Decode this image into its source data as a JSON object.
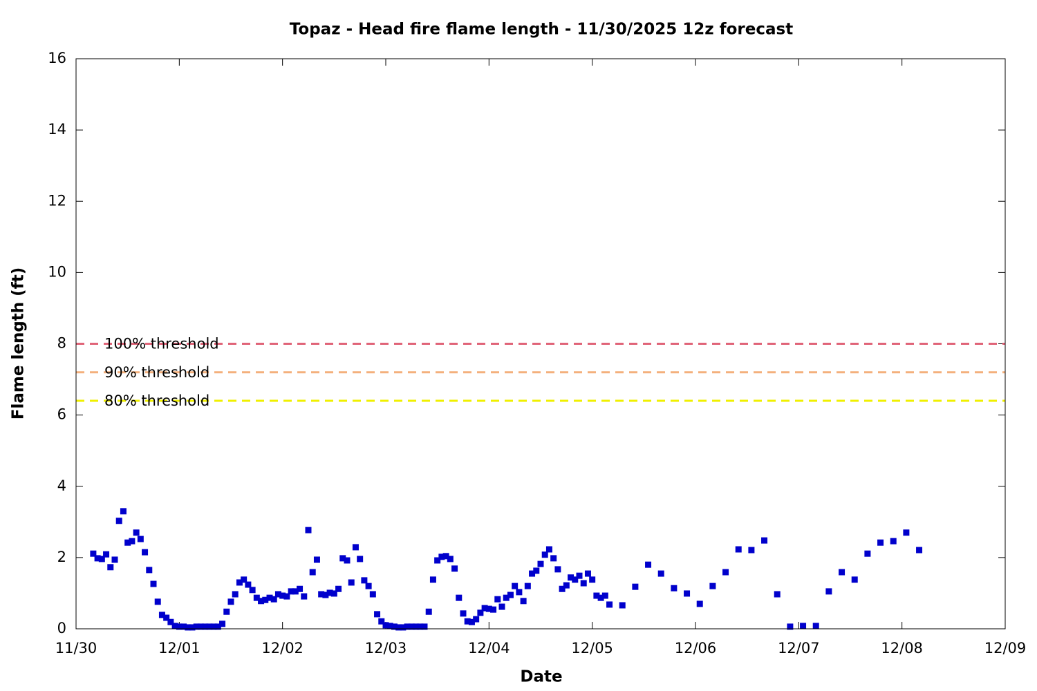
{
  "chart_data": {
    "type": "scatter",
    "title": "Topaz - Head fire flame length - 11/30/2025 12z forecast",
    "x_label": "Date",
    "y_label": "Flame length (ft)",
    "color": "#0000cc",
    "x": [
      4,
      5,
      6,
      7,
      8,
      9,
      10,
      11,
      12,
      13,
      14,
      15,
      16,
      17,
      18,
      19,
      20,
      21,
      22,
      23,
      24,
      25,
      26,
      27,
      28,
      29,
      30,
      31,
      32,
      33,
      34,
      35,
      36,
      37,
      38,
      39,
      40,
      41,
      42,
      43,
      44,
      45,
      46,
      47,
      48,
      49,
      50,
      51,
      52,
      53,
      54,
      55,
      56,
      57,
      58,
      59,
      60,
      61,
      62,
      63,
      64,
      65,
      66,
      67,
      68,
      69,
      70,
      71,
      72,
      73,
      74,
      75,
      76,
      77,
      78,
      79,
      80,
      81,
      82,
      83,
      84,
      85,
      86,
      87,
      88,
      89,
      90,
      91,
      92,
      93,
      94,
      95,
      96,
      97,
      98,
      99,
      100,
      101,
      102,
      103,
      104,
      105,
      106,
      107,
      108,
      109,
      110,
      111,
      112,
      113,
      114,
      115,
      116,
      117,
      118,
      119,
      120,
      121,
      122,
      123,
      124,
      127,
      130,
      133,
      136,
      139,
      142,
      145,
      148,
      151,
      154,
      157,
      160,
      163,
      166,
      169,
      172,
      175,
      178,
      181,
      184,
      187,
      190,
      193,
      196
    ],
    "values": [
      2.11,
      1.98,
      1.96,
      2.09,
      1.73,
      1.94,
      3.03,
      3.3,
      2.42,
      2.46,
      2.7,
      2.52,
      2.15,
      1.65,
      1.26,
      0.76,
      0.39,
      0.31,
      0.19,
      0.08,
      0.06,
      0.06,
      0.04,
      0.04,
      0.06,
      0.06,
      0.06,
      0.06,
      0.06,
      0.06,
      0.14,
      0.48,
      0.76,
      0.97,
      1.3,
      1.38,
      1.24,
      1.09,
      0.87,
      0.78,
      0.81,
      0.87,
      0.83,
      0.97,
      0.93,
      0.91,
      1.05,
      1.05,
      1.12,
      0.91,
      2.77,
      1.59,
      1.94,
      0.97,
      0.95,
      1.01,
      0.99,
      1.12,
      1.98,
      1.92,
      1.3,
      2.29,
      1.96,
      1.36,
      1.2,
      0.97,
      0.41,
      0.21,
      0.1,
      0.08,
      0.06,
      0.04,
      0.04,
      0.06,
      0.06,
      0.06,
      0.06,
      0.06,
      0.48,
      1.38,
      1.92,
      2.02,
      2.04,
      1.96,
      1.69,
      0.87,
      0.43,
      0.21,
      0.19,
      0.27,
      0.45,
      0.58,
      0.56,
      0.54,
      0.83,
      0.62,
      0.87,
      0.95,
      1.2,
      1.03,
      0.78,
      1.2,
      1.55,
      1.63,
      1.82,
      2.08,
      2.23,
      1.98,
      1.67,
      1.12,
      1.22,
      1.44,
      1.38,
      1.49,
      1.28,
      1.55,
      1.38,
      0.93,
      0.87,
      0.93,
      0.68,
      0.66,
      1.18,
      1.8,
      1.55,
      1.14,
      0.99,
      0.7,
      1.2,
      1.59,
      2.23,
      2.21,
      2.48,
      0.97,
      0.06,
      0.08,
      0.08,
      1.05,
      1.59,
      1.38,
      2.11,
      2.42,
      2.46,
      2.7,
      2.21
    ],
    "thresholds": [
      {
        "name": "100% threshold",
        "value": 8,
        "color": "#e06478"
      },
      {
        "name": "90% threshold",
        "value": 7.2,
        "color": "#f4b07c"
      },
      {
        "name": "80% threshold",
        "value": 6.4,
        "color": "#f0f000"
      }
    ],
    "xlim": [
      0,
      216
    ],
    "xticks": [
      {
        "value": 0,
        "label": "11/30"
      },
      {
        "value": 24,
        "label": "12/01"
      },
      {
        "value": 48,
        "label": "12/02"
      },
      {
        "value": 72,
        "label": "12/03"
      },
      {
        "value": 96,
        "label": "12/04"
      },
      {
        "value": 120,
        "label": "12/05"
      },
      {
        "value": 144,
        "label": "12/06"
      },
      {
        "value": 168,
        "label": "12/07"
      },
      {
        "value": 192,
        "label": "12/08"
      },
      {
        "value": 216,
        "label": "12/09"
      }
    ],
    "ylim": [
      0,
      16
    ],
    "yticks": [
      0,
      2,
      4,
      6,
      8,
      10,
      12,
      14,
      16
    ]
  }
}
